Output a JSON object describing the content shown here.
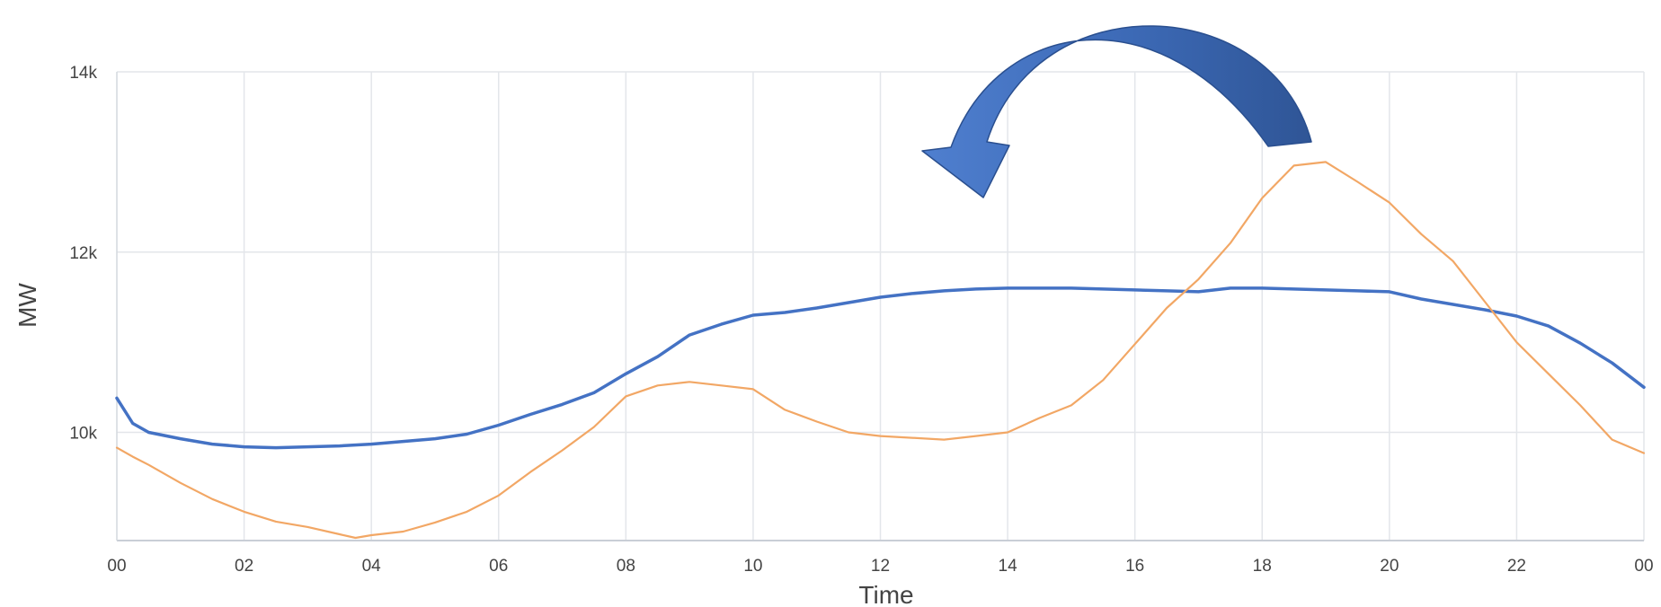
{
  "chart_data": {
    "type": "line",
    "xlabel": "Time",
    "ylabel": "MW",
    "x_tick_labels": [
      "00",
      "02",
      "04",
      "06",
      "08",
      "10",
      "12",
      "14",
      "16",
      "18",
      "20",
      "22",
      "00"
    ],
    "y_tick_labels": [
      "10k",
      "12k",
      "14k"
    ],
    "y_ticks": [
      10000,
      12000,
      14000
    ],
    "xlim": [
      0,
      24
    ],
    "ylim": [
      8800,
      14000
    ],
    "grid": true,
    "series": [
      {
        "color": "#4472c4",
        "x": [
          0,
          0.25,
          0.5,
          1,
          1.5,
          2,
          2.5,
          3,
          3.5,
          4,
          4.5,
          5,
          5.5,
          6,
          6.5,
          7,
          7.5,
          8,
          8.5,
          9,
          9.5,
          10,
          10.5,
          11,
          11.5,
          12,
          12.5,
          13,
          13.5,
          14,
          14.5,
          15,
          15.5,
          16,
          16.5,
          17,
          17.5,
          18,
          18.5,
          19,
          19.5,
          20,
          20.5,
          21,
          21.5,
          22,
          22.5,
          23,
          23.5,
          24
        ],
        "y": [
          10380,
          10100,
          10000,
          9930,
          9870,
          9840,
          9830,
          9840,
          9850,
          9870,
          9900,
          9930,
          9980,
          10080,
          10200,
          10310,
          10440,
          10650,
          10840,
          11080,
          11200,
          11300,
          11330,
          11380,
          11440,
          11500,
          11540,
          11570,
          11590,
          11600,
          11600,
          11600,
          11590,
          11580,
          11570,
          11560,
          11600,
          11600,
          11590,
          11580,
          11570,
          11560,
          11480,
          11420,
          11360,
          11290,
          11180,
          10990,
          10770,
          10500
        ]
      },
      {
        "color": "#f2a765",
        "x": [
          0,
          0.25,
          0.5,
          1,
          1.5,
          2,
          2.5,
          3,
          3.5,
          3.75,
          4,
          4.5,
          5,
          5.5,
          6,
          6.5,
          7,
          7.5,
          8,
          8.5,
          9,
          9.5,
          10,
          10.5,
          11,
          11.5,
          12,
          12.5,
          13,
          13.5,
          14,
          14.5,
          15,
          15.5,
          16,
          16.5,
          17,
          17.5,
          18,
          18.5,
          19,
          19.5,
          20,
          20.5,
          21,
          21.5,
          22,
          22.5,
          23,
          23.5,
          24
        ],
        "y": [
          9830,
          9730,
          9640,
          9440,
          9260,
          9120,
          9010,
          8950,
          8870,
          8830,
          8860,
          8900,
          9000,
          9120,
          9300,
          9560,
          9800,
          10060,
          10400,
          10520,
          10560,
          10520,
          10480,
          10250,
          10120,
          10000,
          9960,
          9940,
          9920,
          9960,
          10000,
          10160,
          10300,
          10580,
          10980,
          11380,
          11700,
          12100,
          12600,
          12960,
          13000,
          12780,
          12550,
          12200,
          11900,
          11450,
          11000,
          10650,
          10300,
          9920,
          9770
        ]
      }
    ],
    "annotations": [
      {
        "type": "curved-arrow",
        "color": "#3b66ae"
      }
    ]
  }
}
